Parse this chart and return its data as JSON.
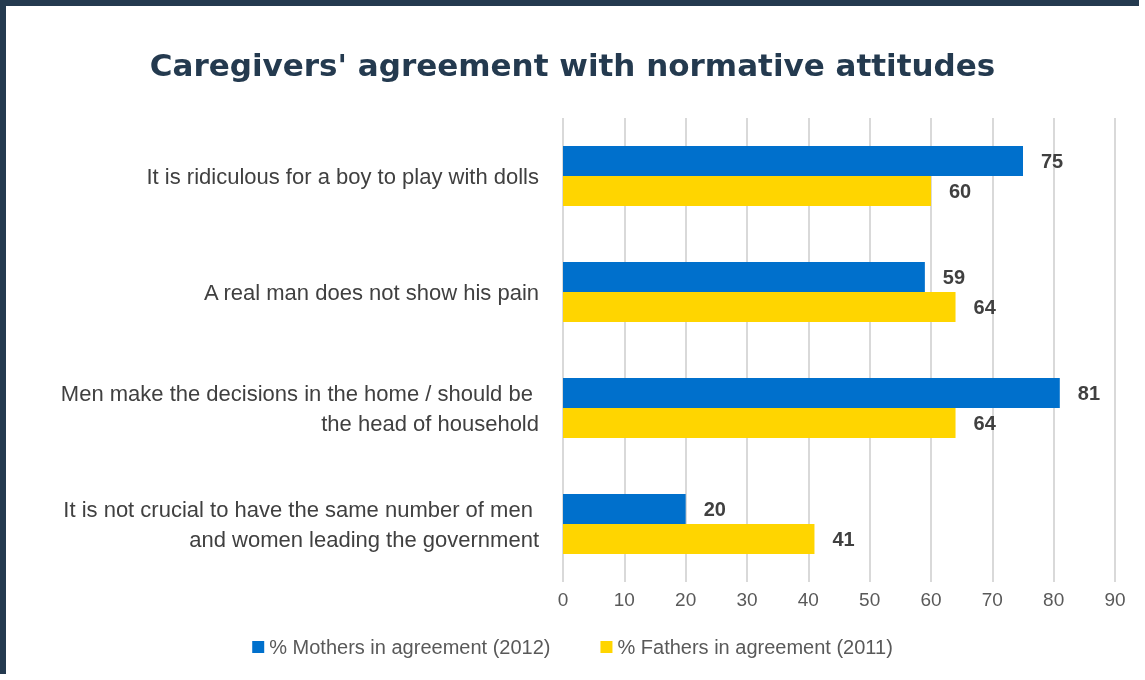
{
  "chart_data": {
    "type": "bar",
    "orientation": "horizontal",
    "title": "Caregivers' agreement with normative attitudes",
    "categories": [
      "It is ridiculous for a boy to play with dolls",
      "A real man does not show his pain",
      "Men make the decisions in the home / should be the head of household",
      "It is not crucial to have the same number of men and women leading the government"
    ],
    "series": [
      {
        "name": "% Mothers in agreement (2012)",
        "color": "#0070cc",
        "values": [
          75,
          59,
          81,
          20
        ]
      },
      {
        "name": "% Fathers in agreement (2011)",
        "color": "#ffd500",
        "values": [
          60,
          64,
          64,
          41
        ]
      }
    ],
    "xlim": [
      0,
      90
    ],
    "xticks": [
      0,
      10,
      20,
      30,
      40,
      50,
      60,
      70,
      80,
      90
    ],
    "grid": "x",
    "legend": "bottom",
    "data_labels": true
  }
}
